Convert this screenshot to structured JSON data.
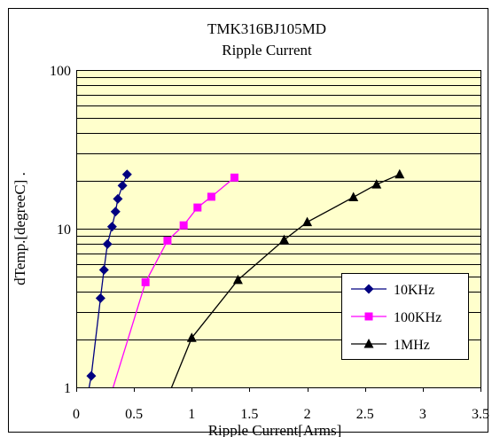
{
  "chart_data": {
    "type": "line",
    "title": "TMK316BJ105MD",
    "subtitle": "Ripple Current",
    "xlabel": "Ripple Current[Arms]",
    "ylabel": "dTemp.[degreeC] .",
    "xlim": [
      0,
      3.5
    ],
    "ylim": [
      1,
      100
    ],
    "yscale": "log",
    "x_ticks": [
      "0",
      "0.5",
      "1",
      "1.5",
      "2",
      "2.5",
      "3",
      "3.5"
    ],
    "y_ticks": [
      "1",
      "10",
      "100"
    ],
    "grid": true,
    "plot_background": "#ffffcc",
    "legend_position": "bottom-right",
    "series": [
      {
        "name": "10KHz",
        "color": "#000080",
        "marker": "diamond",
        "x": [
          0.13,
          0.21,
          0.24,
          0.27,
          0.31,
          0.34,
          0.36,
          0.4,
          0.44
        ],
        "y": [
          1.18,
          3.65,
          5.5,
          8.0,
          10.3,
          12.8,
          15.4,
          18.7,
          22.0
        ]
      },
      {
        "name": "100KHz",
        "color": "#ff00ff",
        "marker": "square",
        "x": [
          0.6,
          0.79,
          0.93,
          1.05,
          1.17,
          1.37
        ],
        "y": [
          4.6,
          8.4,
          10.5,
          13.6,
          15.9,
          21.0
        ]
      },
      {
        "name": "1MHz",
        "color": "#000000",
        "marker": "triangle",
        "x": [
          1.0,
          1.4,
          1.8,
          2.0,
          2.4,
          2.6,
          2.8
        ],
        "y": [
          2.05,
          4.75,
          8.5,
          11.0,
          15.8,
          19.0,
          22.0
        ]
      }
    ],
    "extension_lines": [
      {
        "series": "10KHz",
        "x": [
          0.13,
          0.1
        ],
        "y": [
          1.18,
          0.9
        ]
      },
      {
        "series": "100KHz",
        "x": [
          0.6,
          0.3
        ],
        "y": [
          4.6,
          0.9
        ]
      },
      {
        "series": "1MHz",
        "x": [
          1.0,
          0.8
        ],
        "y": [
          2.05,
          0.9
        ]
      }
    ]
  }
}
